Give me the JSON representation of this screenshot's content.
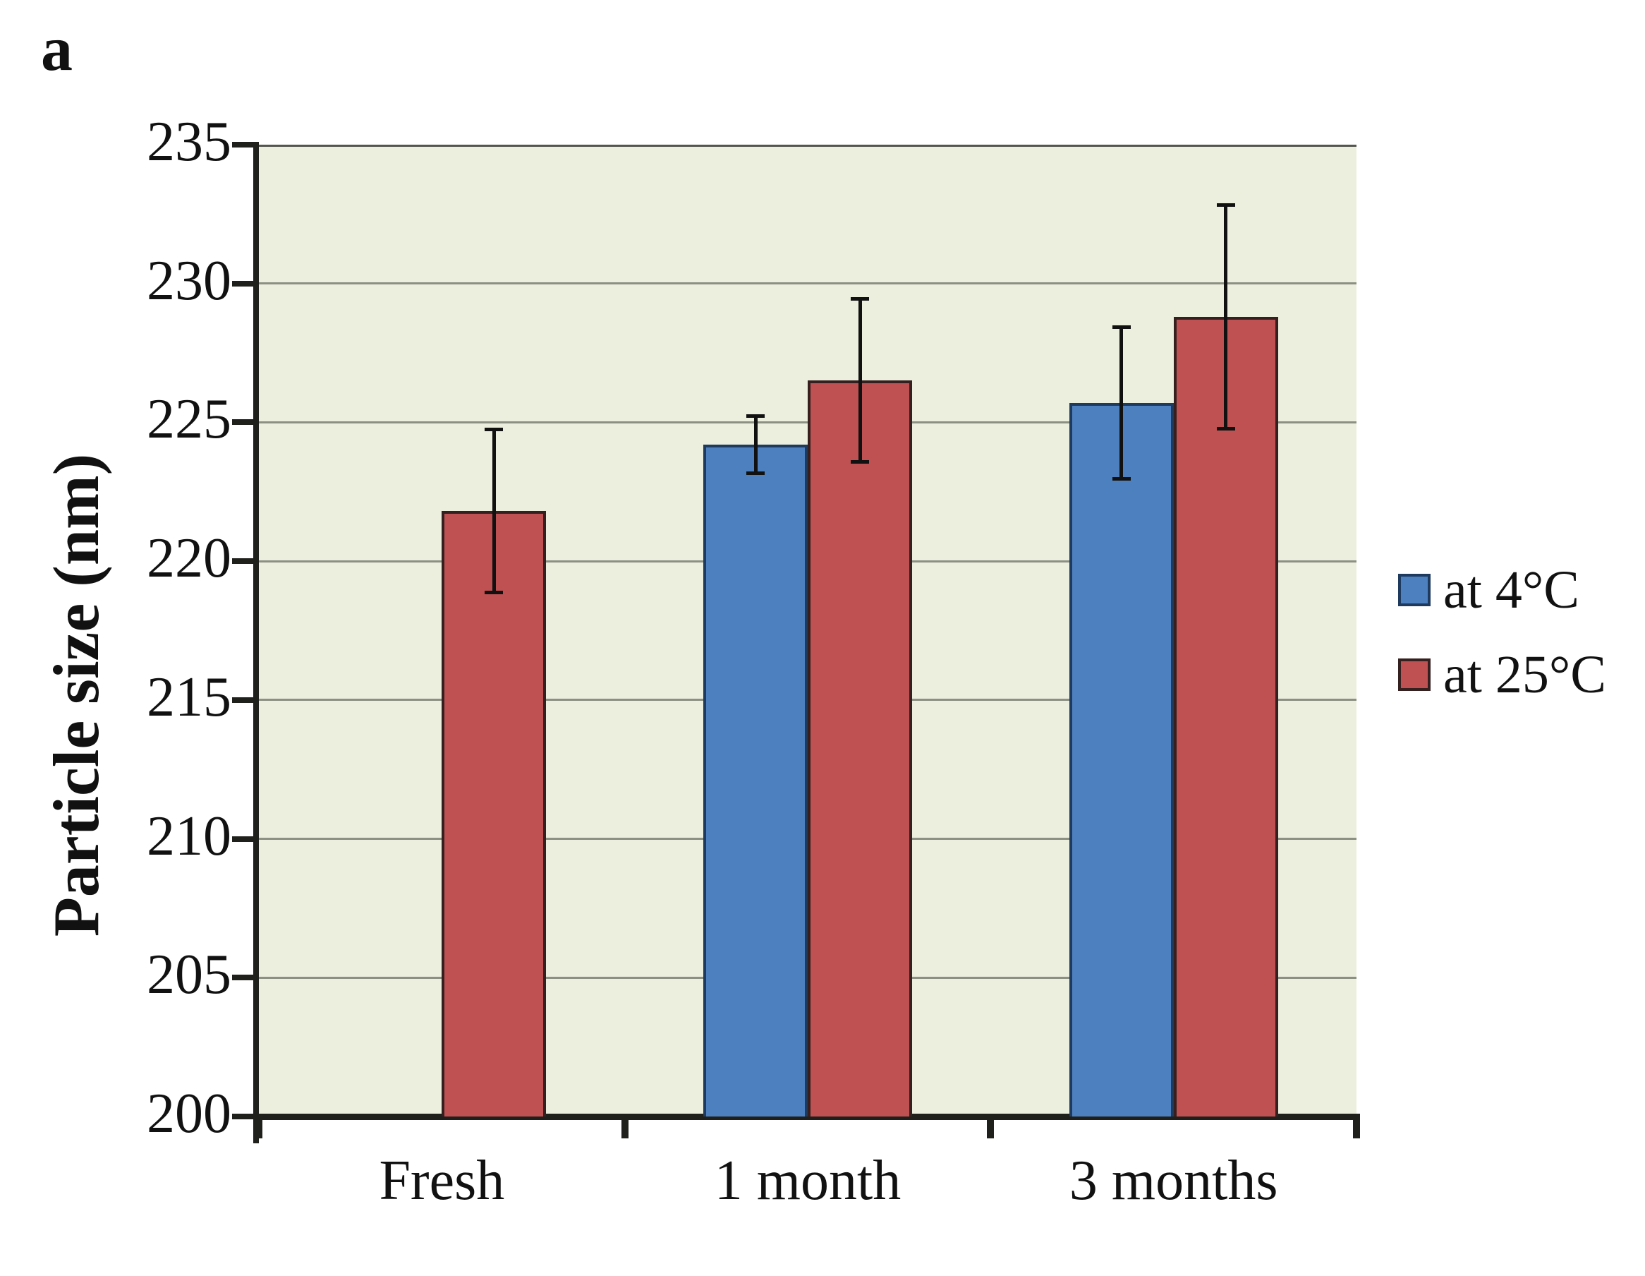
{
  "figure": {
    "panel_label": "a",
    "background_color": "#ffffff"
  },
  "chart_data": {
    "type": "bar",
    "title": "",
    "xlabel": "",
    "ylabel": "Particle size (nm)",
    "categories": [
      "Fresh",
      "1 month",
      "3 months"
    ],
    "series": [
      {
        "name": "at 4°C",
        "color": "#4d80be",
        "border_color": "#1e3a5f",
        "values": [
          null,
          224.2,
          225.7
        ],
        "error_bars": [
          null,
          1.1,
          2.8
        ]
      },
      {
        "name": "at 25°C",
        "color": "#c05152",
        "border_color": "#36201f",
        "values": [
          221.8,
          226.5,
          228.8
        ],
        "error_bars": [
          3.0,
          3.0,
          4.1
        ]
      }
    ],
    "ylim": [
      200,
      235
    ],
    "yticks": [
      200,
      205,
      210,
      215,
      220,
      225,
      230,
      235
    ],
    "grid": "horizontal",
    "legend_position": "right-center",
    "plot_bg_color": "#eceede",
    "plot_top_border_color": "#54554c",
    "gridline_color": "#8b9083",
    "axis_color": "#1f1f1b",
    "error_bar_color": "#111111"
  }
}
